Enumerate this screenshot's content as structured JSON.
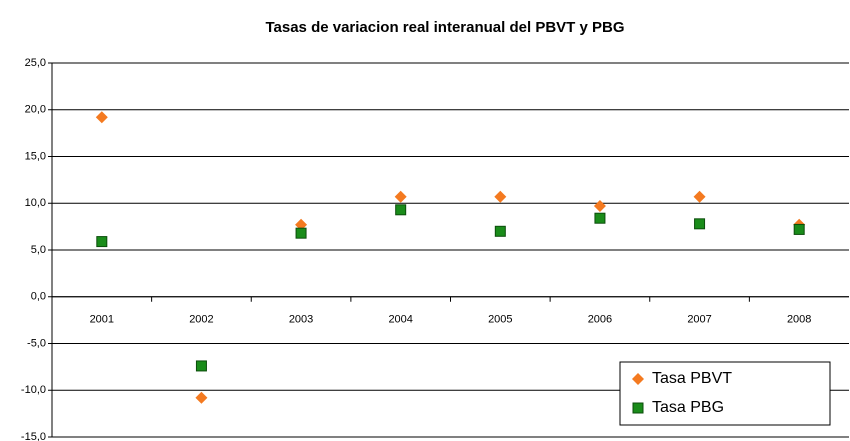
{
  "chart_data": {
    "type": "scatter",
    "title": "Tasas de variacion real interanual del PBVT y PBG",
    "categories": [
      "2001",
      "2002",
      "2003",
      "2004",
      "2005",
      "2006",
      "2007",
      "2008"
    ],
    "series": [
      {
        "name": "Tasa PBVT",
        "color": "#f47a20",
        "marker": "diamond",
        "values": [
          19.2,
          -10.8,
          7.7,
          10.7,
          10.7,
          9.7,
          10.7,
          7.7
        ]
      },
      {
        "name": "Tasa PBG",
        "color": "#1a8c1a",
        "marker": "square",
        "values": [
          5.9,
          -7.4,
          6.8,
          9.3,
          7.0,
          8.4,
          7.8,
          7.2
        ]
      }
    ],
    "ylim": [
      -15,
      25
    ],
    "yticks": [
      {
        "value": -15,
        "label": "-15,0"
      },
      {
        "value": -10,
        "label": "-10,0"
      },
      {
        "value": -5,
        "label": "-5,0"
      },
      {
        "value": 0,
        "label": "0,0"
      },
      {
        "value": 5,
        "label": "5,0"
      },
      {
        "value": 10,
        "label": "10,0"
      },
      {
        "value": 15,
        "label": "15,0"
      },
      {
        "value": 20,
        "label": "20,0"
      },
      {
        "value": 25,
        "label": "25,0"
      }
    ],
    "grid": true,
    "legend": "lower right"
  }
}
